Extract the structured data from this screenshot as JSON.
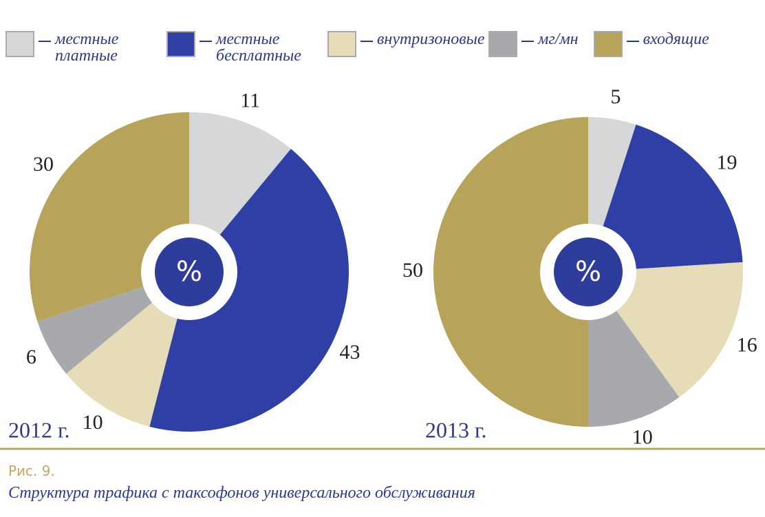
{
  "chart_data": [
    {
      "type": "pie",
      "title": "2012 г.",
      "center_label": "%",
      "categories": [
        "местные платные",
        "местные бесплатные",
        "внутризоновые",
        "мг/мн",
        "входящие"
      ],
      "values": [
        11,
        43,
        10,
        6,
        30
      ],
      "colors": [
        "#d6d7d9",
        "#2f3fa6",
        "#e6dcb8",
        "#a7a9ac",
        "#b7a35a"
      ]
    },
    {
      "type": "pie",
      "title": "2013 г.",
      "center_label": "%",
      "categories": [
        "местные платные",
        "местные бесплатные",
        "внутризоновые",
        "мг/мн",
        "входящие"
      ],
      "values": [
        5,
        19,
        16,
        10,
        50
      ],
      "colors": [
        "#d6d7d9",
        "#2f3fa6",
        "#e6dcb8",
        "#a7a9ac",
        "#b7a35a"
      ]
    }
  ],
  "caption": {
    "label": "Рис. 9.",
    "text": "Структура трафика с таксофонов универсального обслуживания"
  }
}
